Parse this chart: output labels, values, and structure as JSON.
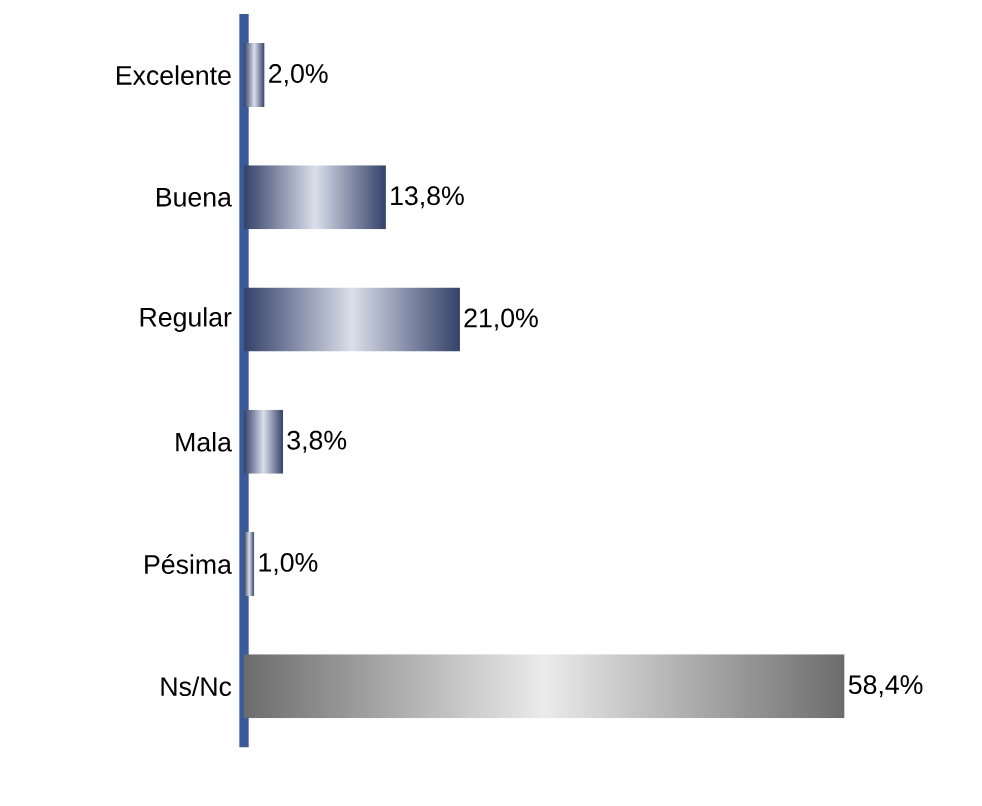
{
  "chart_data": {
    "type": "bar",
    "orientation": "horizontal",
    "categories": [
      "Excelente",
      "Buena",
      "Regular",
      "Mala",
      "Pésima",
      "Ns/Nc"
    ],
    "values": [
      2.0,
      13.8,
      21.0,
      3.8,
      1.0,
      58.4
    ],
    "value_labels": [
      "2,0%",
      "13,8%",
      "21,0%",
      "3,8%",
      "1,0%",
      "58,4%"
    ],
    "colors": [
      "#4a5d96",
      "#4a5d96",
      "#4a5d96",
      "#4a5d96",
      "#4a5d96",
      "#9a9a9a"
    ],
    "tick_labels": "y"
  }
}
